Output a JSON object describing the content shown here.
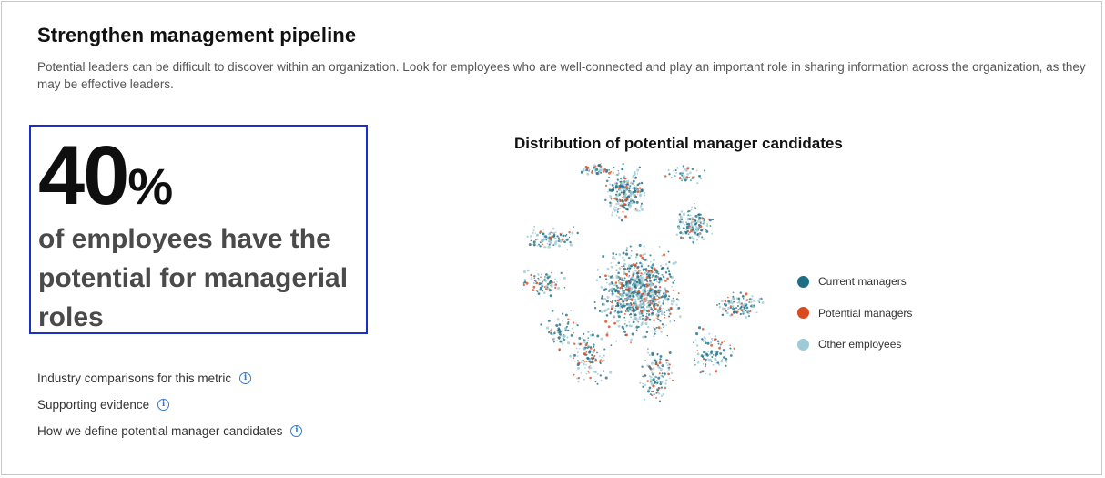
{
  "header": {
    "title": "Strengthen management pipeline",
    "description": "Potential leaders can be difficult to discover within an organization. Look for employees who are well-connected and play an important role in sharing information across the organization, as they may be effective leaders."
  },
  "metric": {
    "value": "40",
    "unit": "%",
    "caption": "of employees have the potential for managerial roles"
  },
  "links": [
    {
      "label": "Industry comparisons for this metric",
      "icon": "info-icon"
    },
    {
      "label": "Supporting evidence",
      "icon": "info-icon"
    },
    {
      "label": "How we define potential manager candidates",
      "icon": "info-icon"
    }
  ],
  "chart": {
    "title": "Distribution of potential manager candidates",
    "legend": [
      {
        "label": "Current managers",
        "color": "#1e6f86"
      },
      {
        "label": "Potential managers",
        "color": "#d94a1e"
      },
      {
        "label": "Other employees",
        "color": "#9ecad6"
      }
    ]
  }
}
